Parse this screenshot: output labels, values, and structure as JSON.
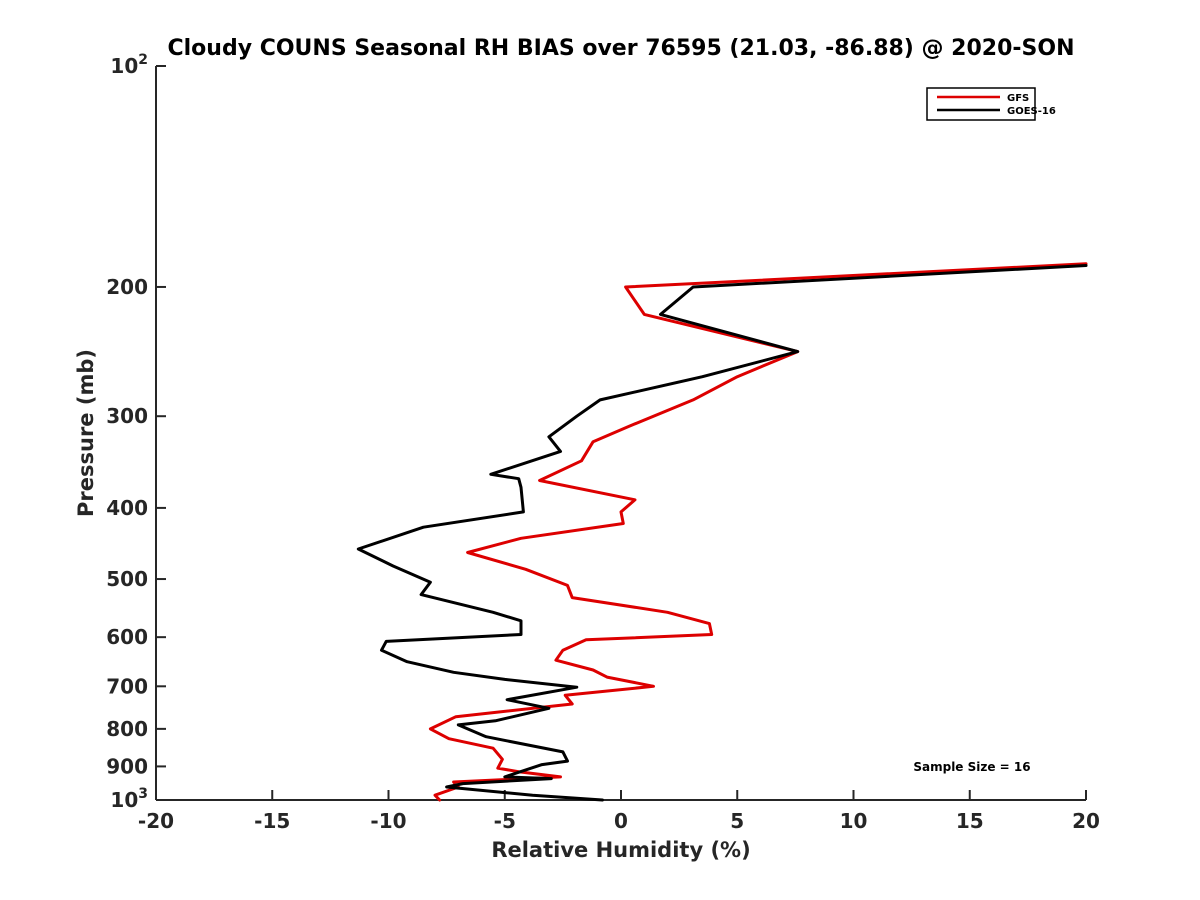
{
  "chart_data": {
    "type": "line",
    "title": "Cloudy COUNS Seasonal RH BIAS over 76595 (21.03, -86.88) @ 2020-SON",
    "xlabel": "Relative Humidity (%)",
    "ylabel": "Pressure (mb)",
    "xlim": [
      -20,
      20
    ],
    "ylim": [
      100,
      1000
    ],
    "yscale": "log",
    "y_reversed": true,
    "grid": false,
    "x_ticks": [
      "-20",
      "-15",
      "-10",
      "-5",
      "0",
      "5",
      "10",
      "15",
      "20"
    ],
    "y_ticks": [
      {
        "value": 100,
        "base": "10",
        "exp": "2"
      },
      {
        "value": 200,
        "label": "200"
      },
      {
        "value": 300,
        "label": "300"
      },
      {
        "value": 400,
        "label": "400"
      },
      {
        "value": 500,
        "label": "500"
      },
      {
        "value": 600,
        "label": "600"
      },
      {
        "value": 700,
        "label": "700"
      },
      {
        "value": 800,
        "label": "800"
      },
      {
        "value": 900,
        "label": "900"
      },
      {
        "value": 1000,
        "base": "10",
        "exp": "3"
      }
    ],
    "legend_position": "top-right",
    "annotation": "Sample Size = 16",
    "series": [
      {
        "name": "GFS",
        "color": "#dd0000",
        "x": [
          20.0,
          0.2,
          1.0,
          7.6,
          5.0,
          3.1,
          0.3,
          -1.2,
          -1.7,
          -3.5,
          0.6,
          0.0,
          0.1,
          -4.3,
          -6.6,
          -4.1,
          -2.3,
          -2.1,
          2.0,
          3.8,
          3.9,
          -1.5,
          -2.5,
          -2.8,
          -1.2,
          -0.6,
          1.4,
          -2.4,
          -2.1,
          -7.1,
          -8.2,
          -7.4,
          -5.5,
          -5.1,
          -5.3,
          -4.4,
          -2.6,
          -7.2,
          -7.0,
          -8.0,
          -7.8
        ],
        "y": [
          186,
          200,
          218,
          245,
          265,
          285,
          310,
          325,
          345,
          367,
          390,
          405,
          420,
          440,
          460,
          485,
          510,
          530,
          555,
          575,
          595,
          605,
          625,
          645,
          665,
          680,
          700,
          720,
          740,
          770,
          800,
          825,
          850,
          880,
          905,
          915,
          930,
          945,
          960,
          985,
          1000
        ]
      },
      {
        "name": "GOES-16",
        "color": "#000000",
        "x": [
          20.0,
          3.1,
          1.7,
          7.6,
          3.5,
          -0.9,
          -1.9,
          -3.1,
          -2.6,
          -5.6,
          -4.4,
          -4.3,
          -4.2,
          -8.5,
          -11.3,
          -9.8,
          -8.2,
          -8.6,
          -5.5,
          -4.3,
          -4.3,
          -10.1,
          -10.3,
          -9.2,
          -7.2,
          -5.0,
          -1.9,
          -4.9,
          -3.1,
          -5.4,
          -7.0,
          -5.8,
          -2.5,
          -2.3,
          -3.4,
          -5.0,
          -3.0,
          -6.8,
          -7.5,
          -3.8,
          -0.8
        ],
        "y": [
          187,
          200,
          218,
          245,
          265,
          285,
          300,
          320,
          335,
          360,
          365,
          375,
          405,
          425,
          455,
          480,
          505,
          525,
          555,
          570,
          595,
          608,
          625,
          648,
          670,
          685,
          702,
          730,
          750,
          780,
          790,
          820,
          860,
          885,
          895,
          930,
          935,
          950,
          960,
          985,
          1000
        ]
      }
    ]
  }
}
